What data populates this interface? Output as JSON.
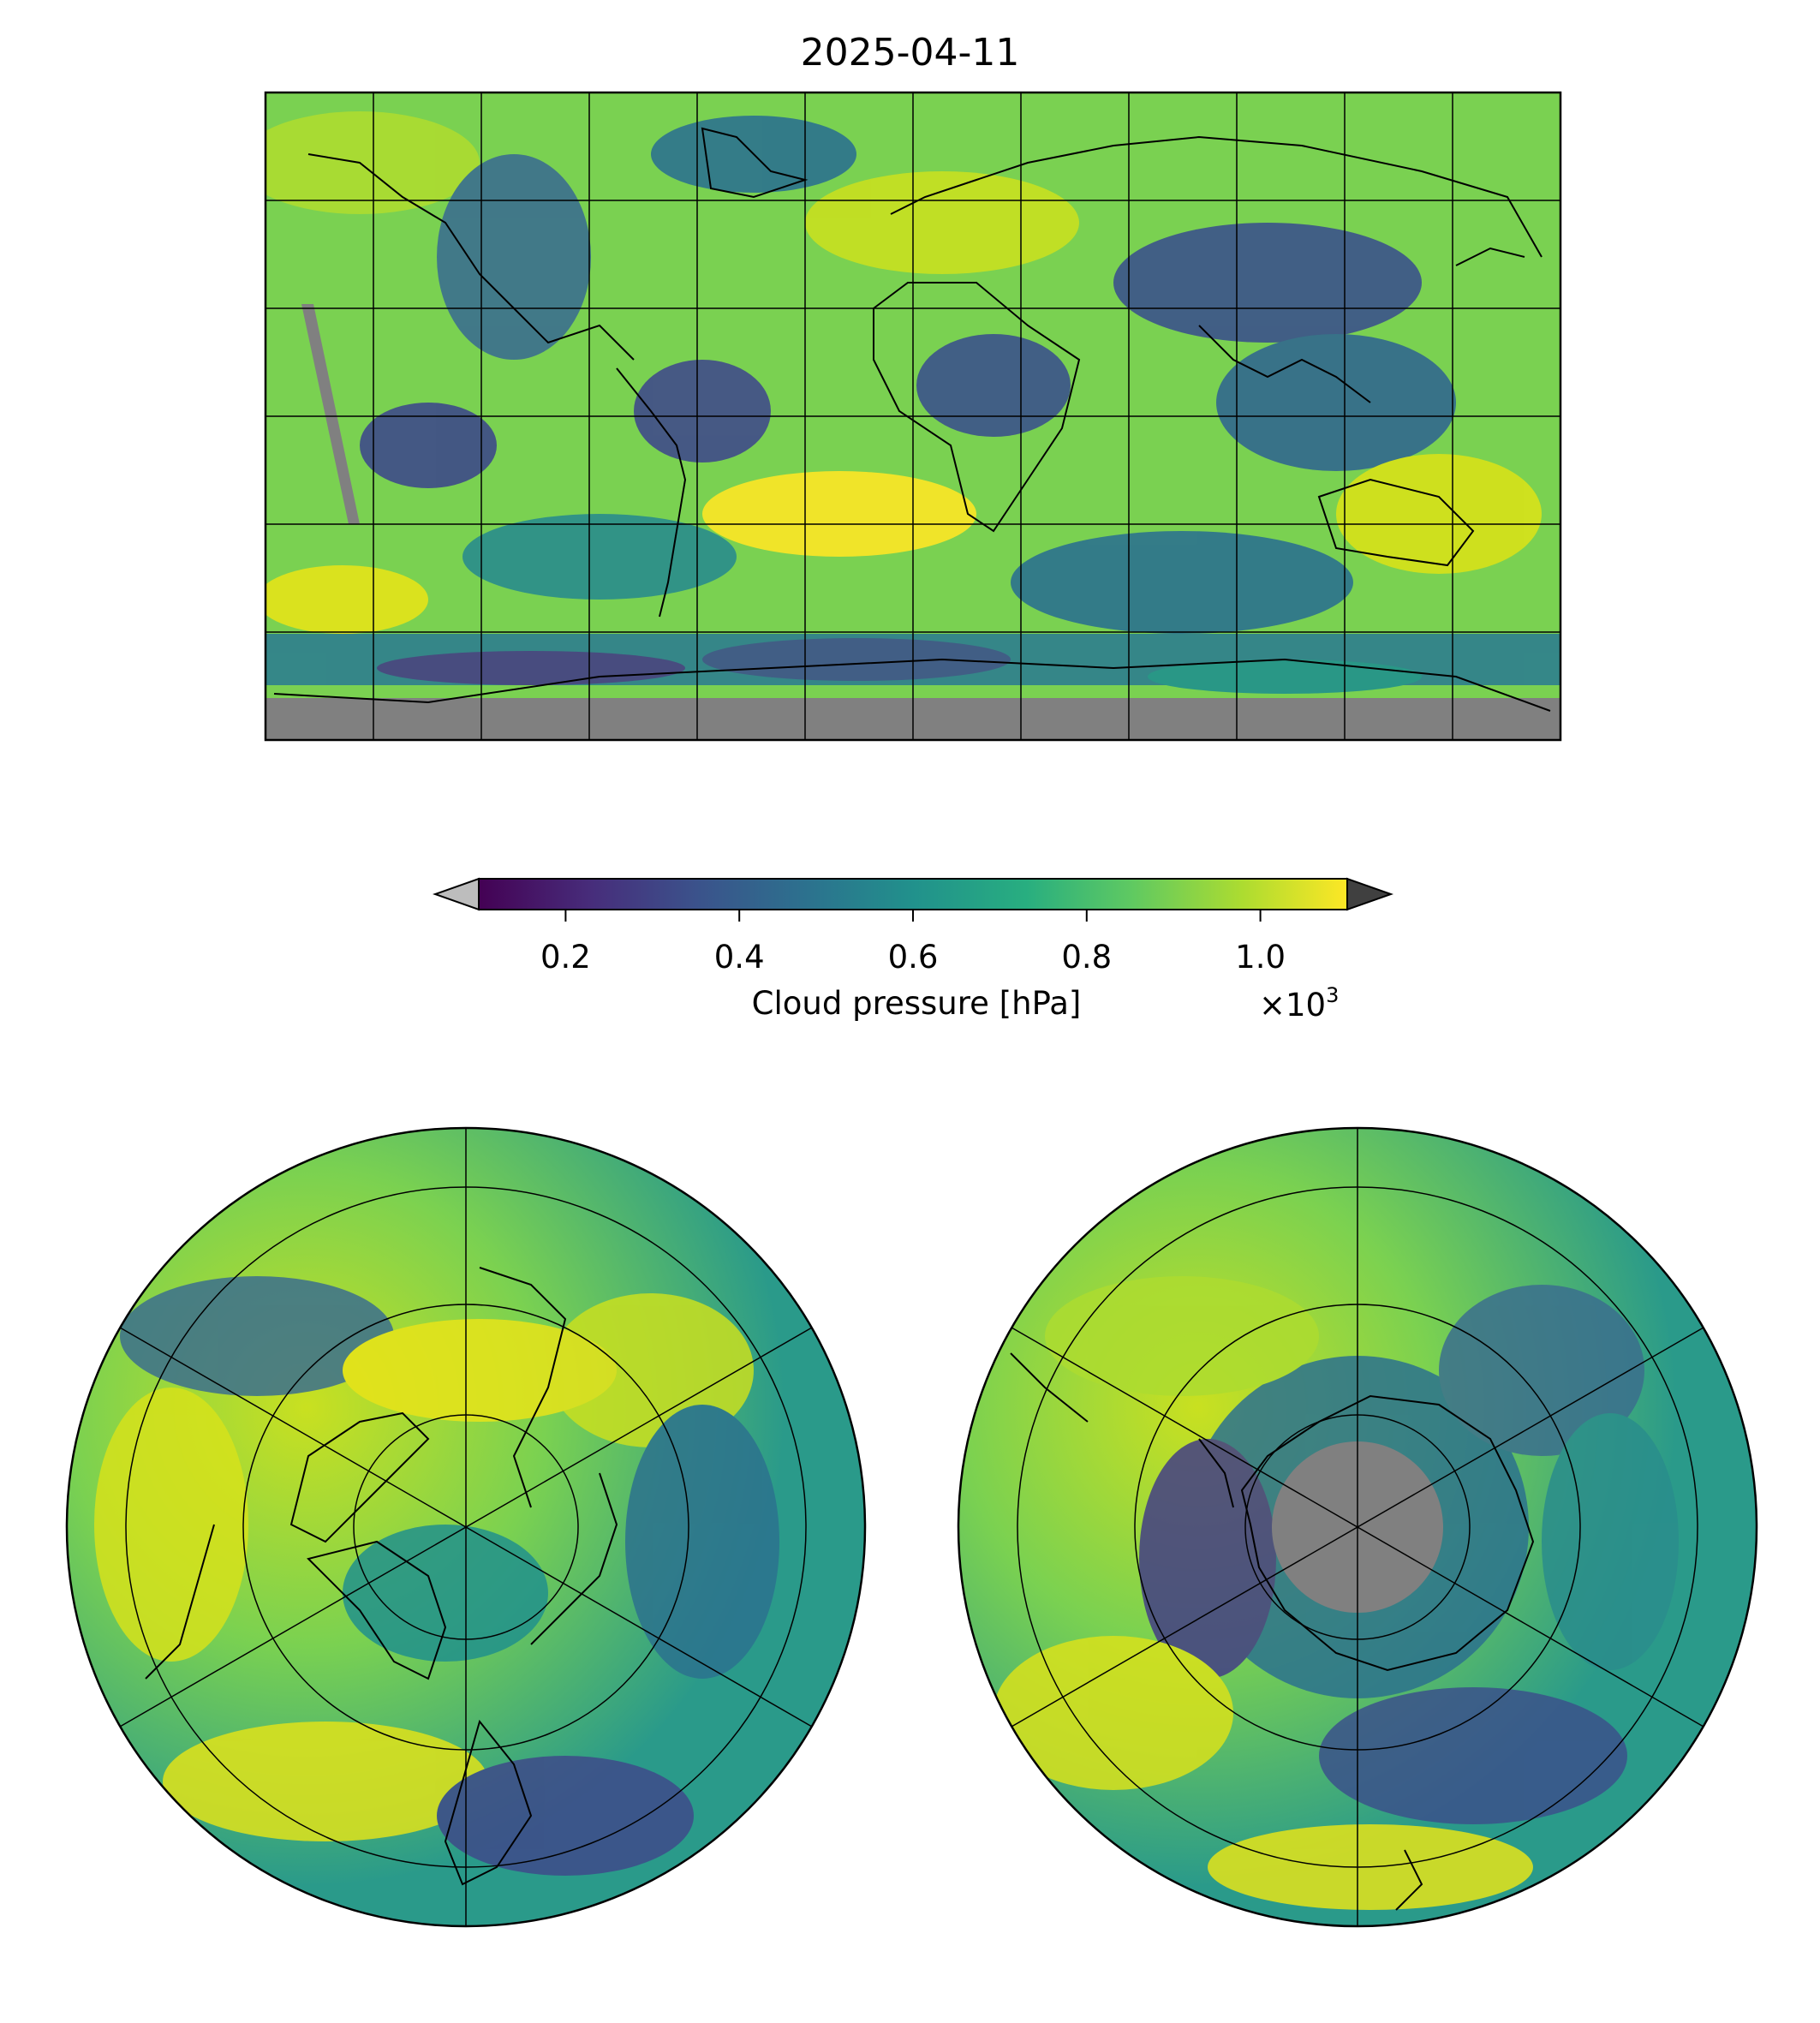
{
  "title": "2025-04-11",
  "colorbar": {
    "label": "Cloud pressure [hPa]",
    "ticks": [
      "0.2",
      "0.4",
      "0.6",
      "0.8",
      "1.0"
    ],
    "tick_values": [
      0.2,
      0.4,
      0.6,
      0.8,
      1.0
    ],
    "range": [
      0.1,
      1.1
    ],
    "multiplier_base": "×10",
    "multiplier_exp": "3",
    "colormap": "viridis",
    "under_color": "#bdbdbd",
    "over_color": "#404040"
  },
  "maps": {
    "global": {
      "projection": "equirectangular",
      "no_data_color": "#808080"
    },
    "north_polar": {
      "projection": "north-polar-stereographic",
      "no_data_color": "#808080"
    },
    "south_polar": {
      "projection": "south-polar-stereographic",
      "no_data_color": "#808080"
    }
  }
}
